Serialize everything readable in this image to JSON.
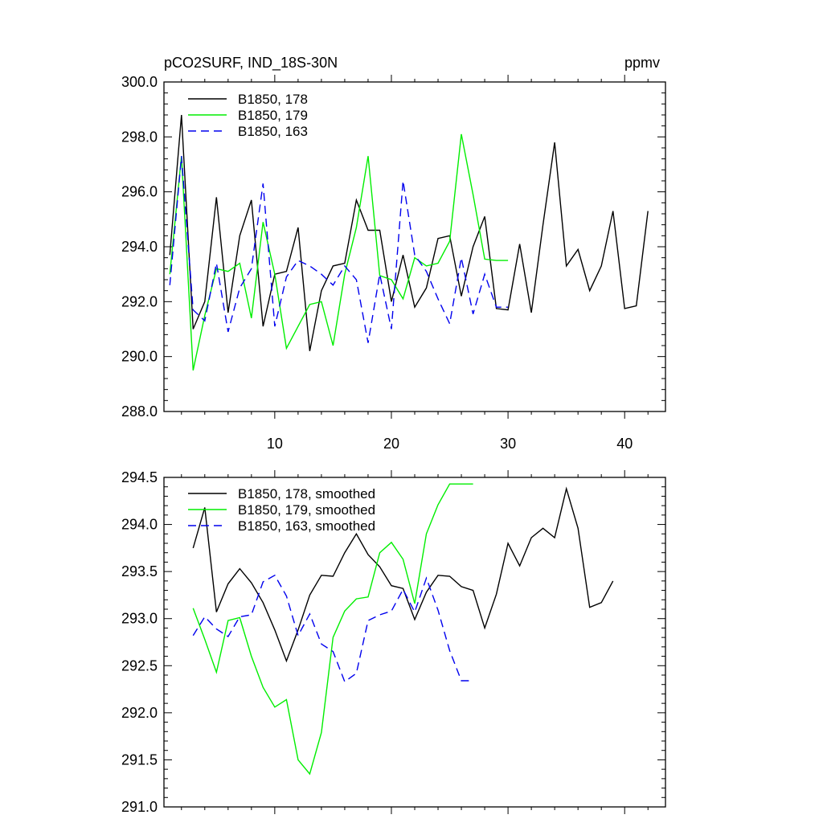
{
  "chart_data": [
    {
      "type": "line",
      "title": "pCO2SURF, IND_18S-30N",
      "units": "ppmv",
      "xlim": [
        0.5,
        43.5
      ],
      "ylim": [
        288.0,
        300.0
      ],
      "xticks": [
        10,
        20,
        30,
        40
      ],
      "xtick_labels": [
        "10",
        "20",
        "30",
        "40"
      ],
      "yticks": [
        288,
        290,
        292,
        294,
        296,
        298,
        300
      ],
      "ytick_labels": [
        "288.0",
        "290.0",
        "292.0",
        "294.0",
        "296.0",
        "298.0",
        "300.0"
      ],
      "legend_position": "top-left",
      "series": [
        {
          "name": "B1850, 178",
          "color": "#000000",
          "dash": "solid",
          "x": [
            1,
            2,
            3,
            4,
            5,
            6,
            7,
            8,
            9,
            10,
            11,
            12,
            13,
            14,
            15,
            16,
            17,
            18,
            19,
            20,
            21,
            22,
            23,
            24,
            25,
            26,
            27,
            28,
            29,
            30,
            31,
            32,
            33,
            34,
            35,
            36,
            37,
            38,
            39,
            40,
            41,
            42
          ],
          "values": [
            293.7,
            298.8,
            291.0,
            292.0,
            295.8,
            291.6,
            294.4,
            295.7,
            291.1,
            293.0,
            293.1,
            294.7,
            290.2,
            292.4,
            293.3,
            293.4,
            295.7,
            294.6,
            294.6,
            292.0,
            293.7,
            291.8,
            292.5,
            294.3,
            294.4,
            292.2,
            294.0,
            295.1,
            291.75,
            291.7,
            294.1,
            291.6,
            294.8,
            297.8,
            293.3,
            293.9,
            292.4,
            293.3,
            295.3,
            291.75,
            291.85,
            295.3
          ]
        },
        {
          "name": "B1850, 179",
          "color": "#00ee00",
          "dash": "solid",
          "x": [
            1,
            2,
            3,
            4,
            5,
            6,
            7,
            8,
            9,
            10,
            11,
            12,
            13,
            14,
            15,
            16,
            17,
            18,
            19,
            20,
            21,
            22,
            23,
            24,
            25,
            26,
            27,
            28,
            29,
            30
          ],
          "values": [
            293.0,
            297.3,
            289.5,
            291.5,
            293.2,
            293.1,
            293.4,
            291.4,
            294.9,
            293.0,
            290.3,
            291.1,
            291.9,
            292.0,
            290.4,
            293.0,
            294.7,
            297.3,
            292.95,
            292.8,
            292.1,
            293.6,
            293.3,
            293.4,
            294.2,
            298.1,
            295.9,
            293.55,
            293.5,
            293.5
          ]
        },
        {
          "name": "B1850, 163",
          "color": "#0000ee",
          "dash": "dashed",
          "x": [
            1,
            2,
            3,
            4,
            5,
            6,
            7,
            8,
            9,
            10,
            11,
            12,
            13,
            14,
            15,
            16,
            17,
            18,
            19,
            20,
            21,
            22,
            23,
            24,
            25,
            26,
            27,
            28,
            29,
            30
          ],
          "values": [
            292.6,
            297.3,
            291.7,
            291.3,
            293.4,
            290.9,
            292.5,
            293.2,
            296.3,
            291.1,
            292.9,
            293.5,
            293.3,
            293.0,
            292.6,
            293.3,
            292.8,
            290.5,
            293.0,
            291.0,
            296.4,
            293.7,
            293.1,
            292.1,
            291.2,
            293.6,
            291.55,
            293.0,
            291.8,
            291.8
          ]
        }
      ]
    },
    {
      "type": "line",
      "title": "",
      "xlim": [
        0.5,
        43.5
      ],
      "ylim": [
        291.0,
        294.5
      ],
      "xticks": [
        10,
        20,
        30,
        40
      ],
      "yticks": [
        291.0,
        291.5,
        292.0,
        292.5,
        293.0,
        293.5,
        294.0,
        294.5
      ],
      "ytick_labels": [
        "291.0",
        "291.5",
        "292.0",
        "292.5",
        "293.0",
        "293.5",
        "294.0",
        "294.5"
      ],
      "legend_position": "top-left",
      "series": [
        {
          "name": "B1850, 178, smoothed",
          "color": "#000000",
          "dash": "solid",
          "x": [
            3,
            4,
            5,
            6,
            7,
            8,
            9,
            10,
            11,
            12,
            13,
            14,
            15,
            16,
            17,
            18,
            19,
            20,
            21,
            22,
            23,
            24,
            25,
            26,
            27,
            28,
            29,
            30,
            31,
            32,
            33,
            34,
            35,
            36,
            37,
            38,
            39
          ],
          "values": [
            293.75,
            294.18,
            293.07,
            293.37,
            293.53,
            293.38,
            293.17,
            292.88,
            292.55,
            292.88,
            293.25,
            293.46,
            293.45,
            293.7,
            293.9,
            293.68,
            293.55,
            293.35,
            293.32,
            292.99,
            293.28,
            293.46,
            293.45,
            293.34,
            293.3,
            292.9,
            293.26,
            293.8,
            293.56,
            293.86,
            293.96,
            293.86,
            294.38,
            293.96,
            293.12,
            293.17,
            293.4
          ]
        },
        {
          "name": "B1850, 179, smoothed",
          "color": "#00ee00",
          "dash": "solid",
          "x": [
            3,
            4,
            5,
            6,
            7,
            8,
            9,
            10,
            11,
            12,
            13,
            14,
            15,
            16,
            17,
            18,
            19,
            20,
            21,
            22,
            23,
            24,
            25,
            26,
            27
          ],
          "values": [
            293.11,
            292.78,
            292.43,
            292.98,
            293.01,
            292.6,
            292.27,
            292.06,
            292.14,
            291.5,
            291.35,
            291.79,
            292.8,
            293.08,
            293.21,
            293.23,
            293.7,
            293.81,
            293.63,
            293.16,
            293.9,
            294.21,
            294.43,
            294.43,
            294.43
          ]
        },
        {
          "name": "B1850, 163, smoothed",
          "color": "#0000ee",
          "dash": "dashed",
          "x": [
            3,
            4,
            5,
            6,
            7,
            8,
            9,
            10,
            11,
            12,
            13,
            14,
            15,
            16,
            17,
            18,
            19,
            20,
            21,
            22,
            23,
            24,
            25,
            26,
            27
          ],
          "values": [
            292.82,
            293.02,
            292.89,
            292.81,
            293.02,
            293.04,
            293.39,
            293.46,
            293.24,
            292.82,
            293.05,
            292.73,
            292.65,
            292.33,
            292.42,
            292.98,
            293.04,
            293.08,
            293.31,
            293.07,
            293.43,
            293.09,
            292.66,
            292.34,
            292.34
          ]
        }
      ]
    }
  ]
}
